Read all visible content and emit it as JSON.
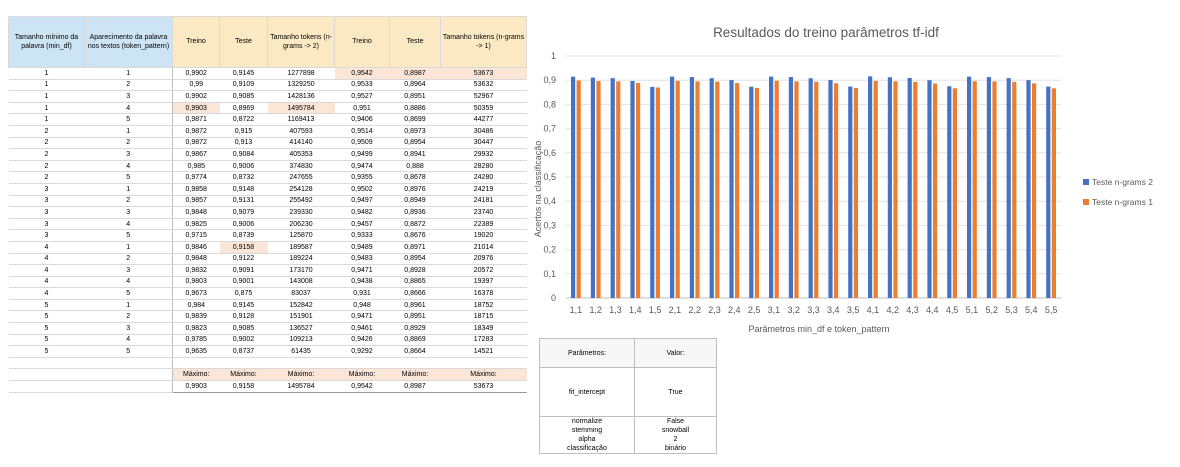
{
  "main_table": {
    "headers": [
      "Tamanho mínimo da palavra (min_df)",
      "Aparecimento da palavra nos textos (token_pattern)",
      "Treino",
      "Teste",
      "Tamanho tokens (n-grams -> 2)",
      "Treino",
      "Teste",
      "Tamanho tokens (n-grams -> 1)"
    ],
    "rows": [
      [
        "1",
        "1",
        "0,9902",
        "0,9145",
        "1277898",
        "0,9542",
        "0,8987",
        "53673"
      ],
      [
        "1",
        "2",
        "0,99",
        "0,9109",
        "1329250",
        "0,9533",
        "0,8964",
        "53632"
      ],
      [
        "1",
        "3",
        "0,9902",
        "0,9085",
        "1428136",
        "0,9527",
        "0,8951",
        "52967"
      ],
      [
        "1",
        "4",
        "0,9903",
        "0,8969",
        "1495784",
        "0,951",
        "0,8886",
        "50359"
      ],
      [
        "1",
        "5",
        "0,9871",
        "0,8722",
        "1169413",
        "0,9406",
        "0,8699",
        "44277"
      ],
      [
        "2",
        "1",
        "0,9872",
        "0,915",
        "407593",
        "0,9514",
        "0,8973",
        "30486"
      ],
      [
        "2",
        "2",
        "0,9872",
        "0,913",
        "414140",
        "0,9509",
        "0,8954",
        "30447"
      ],
      [
        "2",
        "3",
        "0,9867",
        "0,9084",
        "405353",
        "0,9499",
        "0,8941",
        "29932"
      ],
      [
        "2",
        "4",
        "0,985",
        "0,9006",
        "374830",
        "0,9474",
        "0,888",
        "28280"
      ],
      [
        "2",
        "5",
        "0,9774",
        "0,8732",
        "247655",
        "0,9355",
        "0,8678",
        "24280"
      ],
      [
        "3",
        "1",
        "0,9858",
        "0,9148",
        "254128",
        "0,9502",
        "0,8976",
        "24219"
      ],
      [
        "3",
        "2",
        "0,9857",
        "0,9131",
        "255492",
        "0,9497",
        "0,8949",
        "24181"
      ],
      [
        "3",
        "3",
        "0,9848",
        "0,9079",
        "239330",
        "0,9482",
        "0,8936",
        "23740"
      ],
      [
        "3",
        "4",
        "0,9825",
        "0,9006",
        "206230",
        "0,9457",
        "0,8872",
        "22389"
      ],
      [
        "3",
        "5",
        "0,9715",
        "0,8739",
        "125870",
        "0,9333",
        "0,8676",
        "19020"
      ],
      [
        "4",
        "1",
        "0,9846",
        "0,9158",
        "189587",
        "0,9489",
        "0,8971",
        "21014"
      ],
      [
        "4",
        "2",
        "0,9848",
        "0,9122",
        "189224",
        "0,9483",
        "0,8954",
        "20976"
      ],
      [
        "4",
        "3",
        "0,9832",
        "0,9091",
        "173170",
        "0,9471",
        "0,8928",
        "20572"
      ],
      [
        "4",
        "4",
        "0,9803",
        "0,9001",
        "143008",
        "0,9438",
        "0,8865",
        "19397"
      ],
      [
        "4",
        "5",
        "0,9673",
        "0,875",
        "83037",
        "0,931",
        "0,8666",
        "16378"
      ],
      [
        "5",
        "1",
        "0,984",
        "0,9145",
        "152842",
        "0,948",
        "0,8961",
        "18752"
      ],
      [
        "5",
        "2",
        "0,9839",
        "0,9128",
        "151901",
        "0,9471",
        "0,8951",
        "18715"
      ],
      [
        "5",
        "3",
        "0,9823",
        "0,9085",
        "136527",
        "0,9461",
        "0,8929",
        "18349"
      ],
      [
        "5",
        "4",
        "0,9785",
        "0,9002",
        "109213",
        "0,9426",
        "0,8869",
        "17283"
      ],
      [
        "5",
        "5",
        "0,9635",
        "0,8737",
        "61435",
        "0,9292",
        "0,8664",
        "14521"
      ]
    ],
    "max_labels": [
      "Máximo:",
      "Máximo:",
      "Máximo:",
      "Máximo:",
      "Máximo:",
      "Máximo:"
    ],
    "max_values": [
      "0,9903",
      "0,9158",
      "1495784",
      "0,9542",
      "0,8987",
      "53673"
    ]
  },
  "param_table": {
    "header_param": "Parâmetros:",
    "header_value": "Valor:",
    "rows": [
      [
        "fit_intercept",
        "True"
      ],
      [
        "normalize",
        "False"
      ],
      [
        "stemming",
        "snowball"
      ],
      [
        "alpha",
        "2"
      ],
      [
        "classificação",
        "binário"
      ]
    ]
  },
  "chart_data": {
    "type": "bar",
    "title": "Resultados do treino parâmetros tf-idf",
    "xlabel": "Parâmetros min_df e token_pattern",
    "ylabel": "Acertos na classificação",
    "ylim": [
      0,
      1
    ],
    "yticks": [
      "0",
      "0,1",
      "0,2",
      "0,3",
      "0,4",
      "0,5",
      "0,6",
      "0,7",
      "0,8",
      "0,9",
      "1"
    ],
    "grid": true,
    "legend_position": "right",
    "categories": [
      "1,1",
      "1,2",
      "1,3",
      "1,4",
      "1,5",
      "2,1",
      "2,2",
      "2,3",
      "2,4",
      "2,5",
      "3,1",
      "3,2",
      "3,3",
      "3,4",
      "3,5",
      "4,1",
      "4,2",
      "4,3",
      "4,4",
      "4,5",
      "5,1",
      "5,2",
      "5,3",
      "5,4",
      "5,5"
    ],
    "series": [
      {
        "name": "Teste n-grams 2",
        "color": "#4472c4",
        "values": [
          0.9145,
          0.9109,
          0.9085,
          0.8969,
          0.8722,
          0.915,
          0.913,
          0.9084,
          0.9006,
          0.8732,
          0.9148,
          0.9131,
          0.9079,
          0.9006,
          0.8739,
          0.9158,
          0.9122,
          0.9091,
          0.9001,
          0.875,
          0.9145,
          0.9128,
          0.9085,
          0.9002,
          0.8737
        ]
      },
      {
        "name": "Teste n-grams 1",
        "color": "#ed7d31",
        "values": [
          0.8987,
          0.8964,
          0.8951,
          0.8886,
          0.8699,
          0.8973,
          0.8954,
          0.8941,
          0.888,
          0.8678,
          0.8976,
          0.8949,
          0.8936,
          0.8872,
          0.8676,
          0.8971,
          0.8954,
          0.8928,
          0.8865,
          0.8666,
          0.8961,
          0.8951,
          0.8929,
          0.8869,
          0.8664
        ]
      }
    ]
  }
}
